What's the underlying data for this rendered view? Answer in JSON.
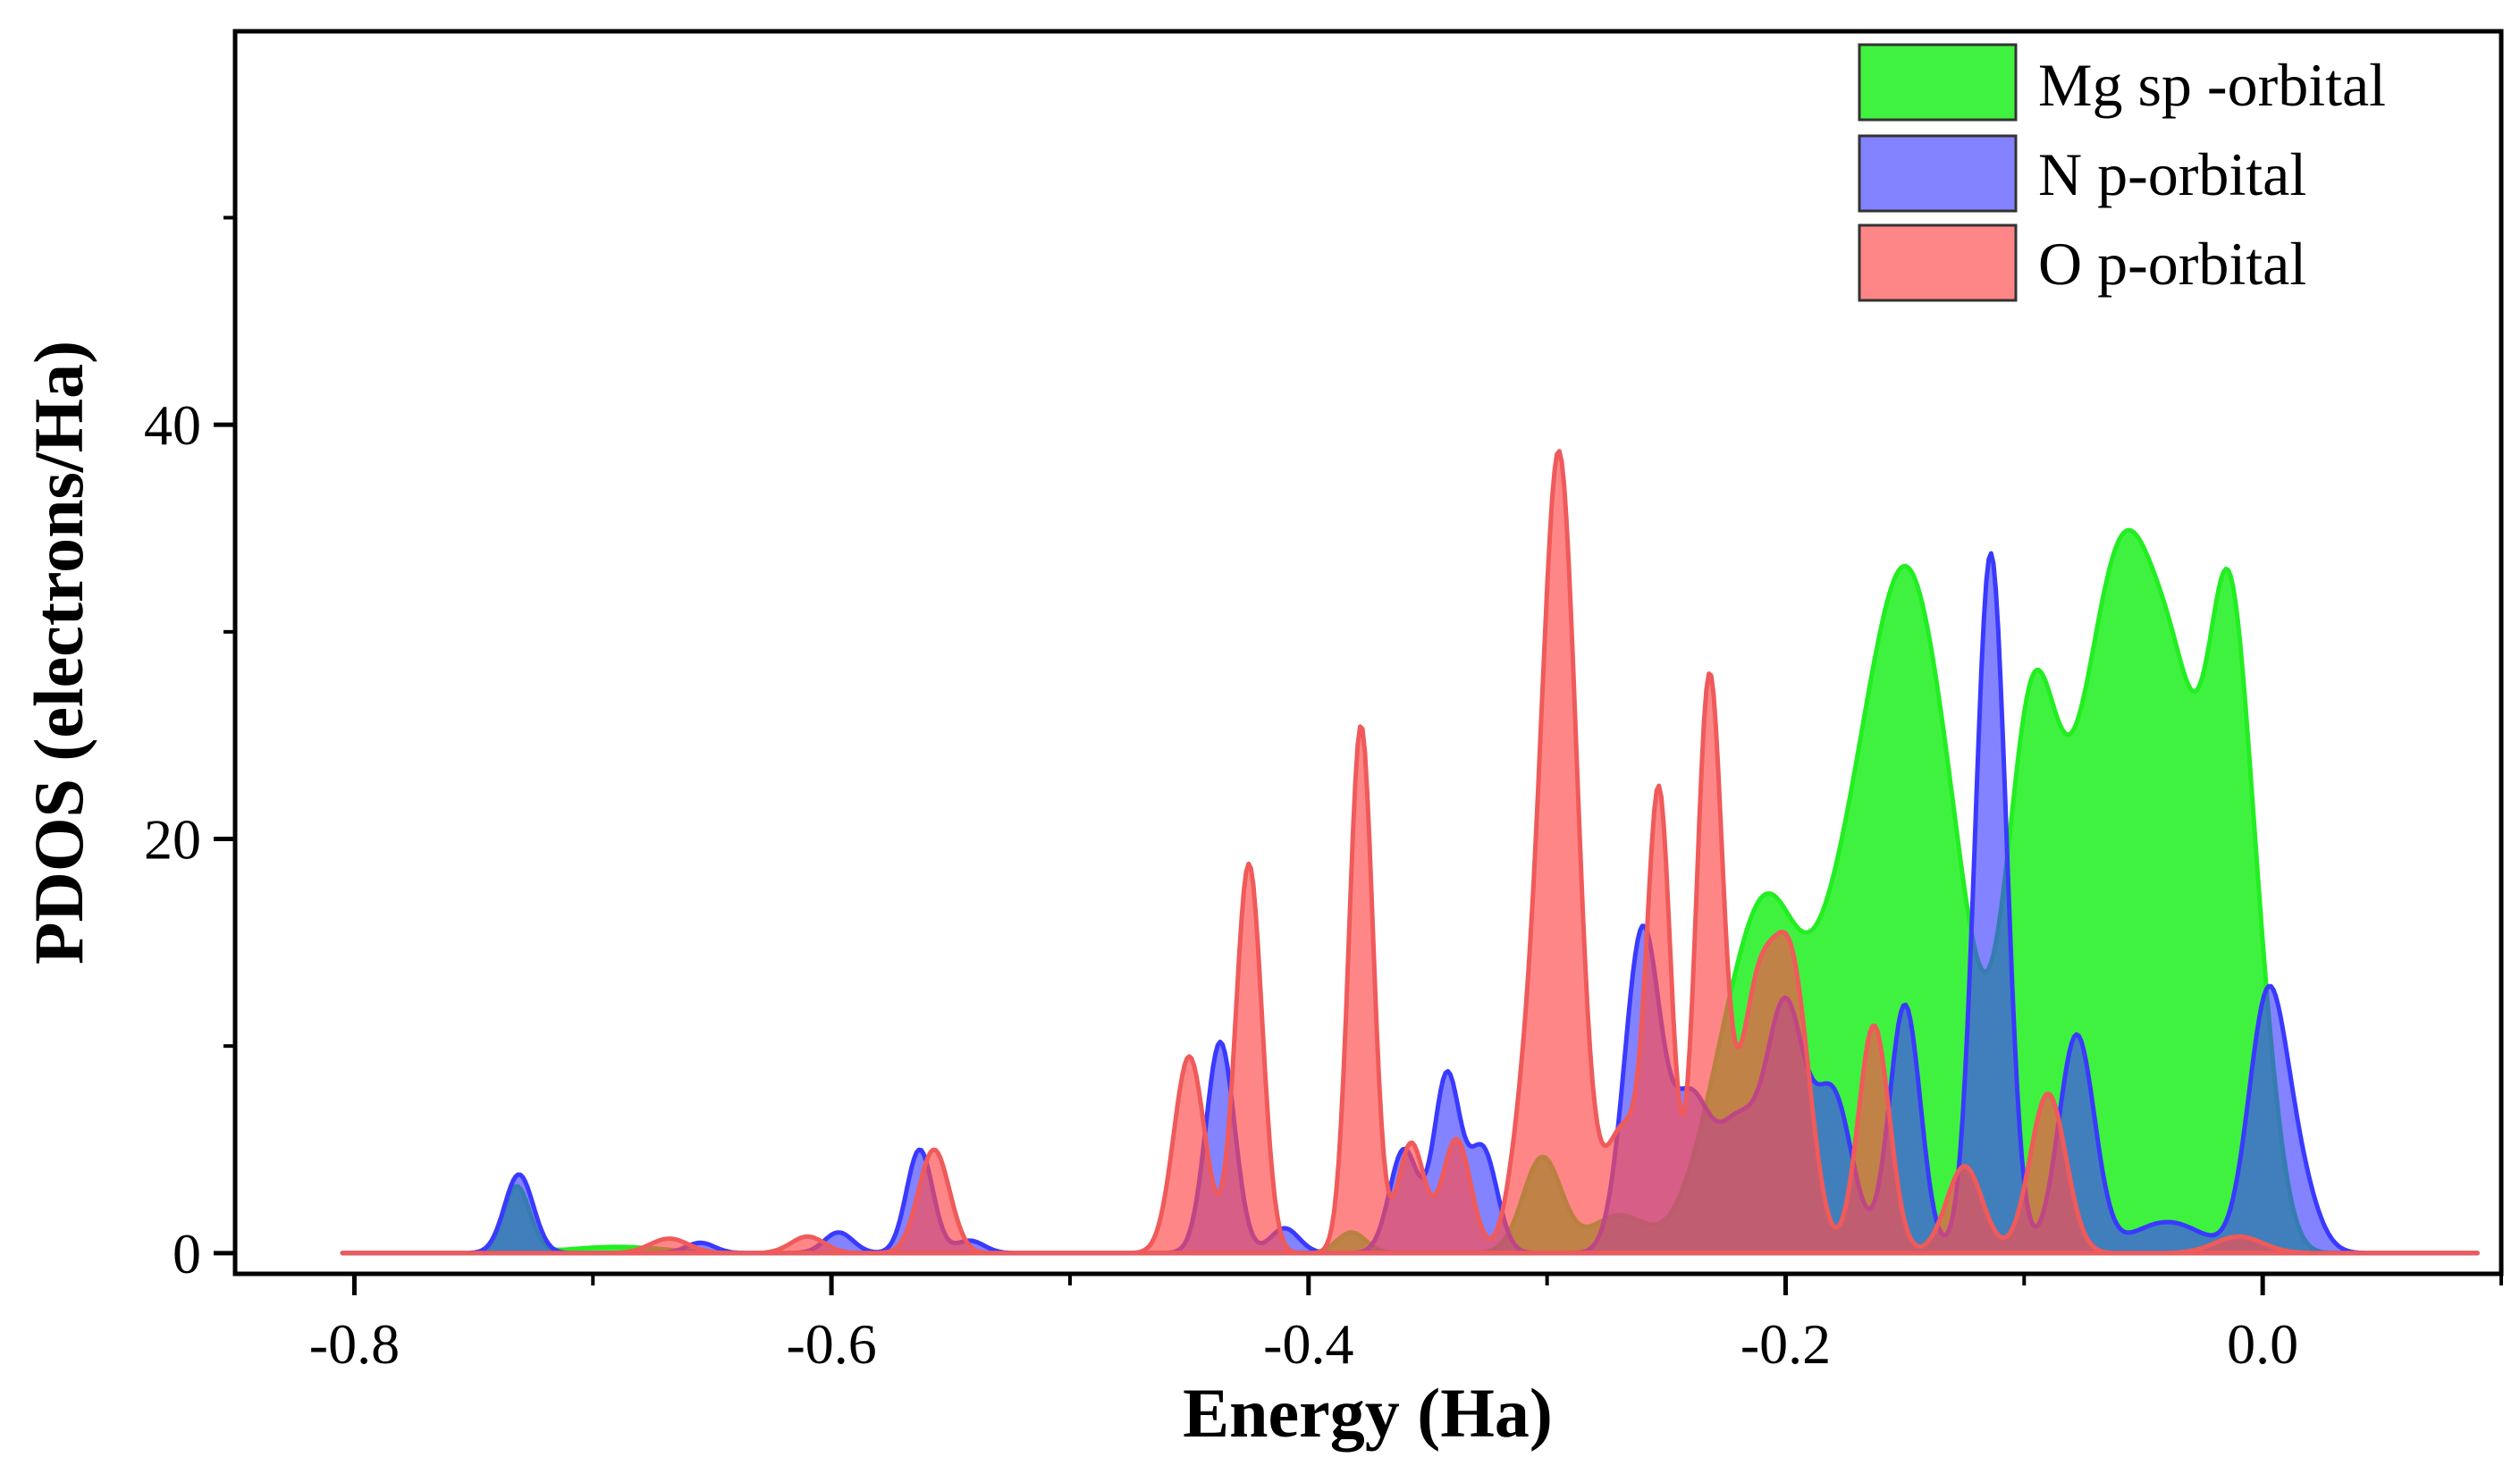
{
  "chart_data": {
    "type": "area",
    "title": "",
    "xlabel": "Energy (Ha)",
    "ylabel": "PDOS (electrons/Ha)",
    "xlim": [
      -0.85,
      0.1
    ],
    "ylim": [
      -1,
      59
    ],
    "x_major_ticks": [
      -0.8,
      -0.6,
      -0.4,
      -0.2,
      0.0
    ],
    "x_tick_labels": [
      "-0.8",
      "-0.6",
      "-0.4",
      "-0.2",
      "0.0"
    ],
    "y_major_ticks": [
      0,
      20,
      40
    ],
    "y_tick_labels": [
      "0",
      "20",
      "40"
    ],
    "legend_position": "top-right",
    "x_start": -0.805,
    "x_end": 0.09,
    "series": [
      {
        "name": "Mg sp -orbital",
        "fill": "#00ee00",
        "stroke": "#22ee22",
        "opacity": 0.75,
        "peaks": [
          {
            "center": -0.732,
            "height": 3.2,
            "width": 0.0055
          },
          {
            "center": -0.69,
            "height": 0.3,
            "width": 0.02
          },
          {
            "center": -0.382,
            "height": 1.0,
            "width": 0.006
          },
          {
            "center": -0.302,
            "height": 4.6,
            "width": 0.008
          },
          {
            "center": -0.27,
            "height": 1.8,
            "width": 0.012
          },
          {
            "center": -0.222,
            "height": 9.0,
            "width": 0.014
          },
          {
            "center": -0.205,
            "height": 11.0,
            "width": 0.012
          },
          {
            "center": -0.185,
            "height": 7.0,
            "width": 0.012
          },
          {
            "center": -0.168,
            "height": 13.0,
            "width": 0.013
          },
          {
            "center": -0.148,
            "height": 26.5,
            "width": 0.014
          },
          {
            "center": -0.128,
            "height": 10.0,
            "width": 0.012
          },
          {
            "center": -0.097,
            "height": 24.5,
            "width": 0.011
          },
          {
            "center": -0.072,
            "height": 17.0,
            "width": 0.013
          },
          {
            "center": -0.052,
            "height": 27.0,
            "width": 0.014
          },
          {
            "center": -0.033,
            "height": 14.0,
            "width": 0.01
          },
          {
            "center": -0.014,
            "height": 28.5,
            "width": 0.009
          },
          {
            "center": 0.0,
            "height": 6.5,
            "width": 0.008
          }
        ]
      },
      {
        "name": "N p-orbital",
        "fill": "#4040ff",
        "stroke": "#3a3aff",
        "opacity": 0.65,
        "peaks": [
          {
            "center": -0.731,
            "height": 3.8,
            "width": 0.006
          },
          {
            "center": -0.655,
            "height": 0.5,
            "width": 0.006
          },
          {
            "center": -0.597,
            "height": 1.0,
            "width": 0.006
          },
          {
            "center": -0.563,
            "height": 5.0,
            "width": 0.0055
          },
          {
            "center": -0.542,
            "height": 0.6,
            "width": 0.006
          },
          {
            "center": -0.437,
            "height": 10.2,
            "width": 0.006
          },
          {
            "center": -0.41,
            "height": 1.2,
            "width": 0.006
          },
          {
            "center": -0.36,
            "height": 5.0,
            "width": 0.006
          },
          {
            "center": -0.342,
            "height": 8.5,
            "width": 0.0055
          },
          {
            "center": -0.327,
            "height": 5.0,
            "width": 0.006
          },
          {
            "center": -0.26,
            "height": 15.5,
            "width": 0.0075
          },
          {
            "center": -0.24,
            "height": 7.0,
            "width": 0.008
          },
          {
            "center": -0.22,
            "height": 6.0,
            "width": 0.009
          },
          {
            "center": -0.2,
            "height": 11.5,
            "width": 0.008
          },
          {
            "center": -0.18,
            "height": 7.5,
            "width": 0.008
          },
          {
            "center": -0.15,
            "height": 12.0,
            "width": 0.0065
          },
          {
            "center": -0.114,
            "height": 33.8,
            "width": 0.0065
          },
          {
            "center": -0.078,
            "height": 10.5,
            "width": 0.0075
          },
          {
            "center": -0.04,
            "height": 1.5,
            "width": 0.015
          },
          {
            "center": 0.002,
            "height": 12.0,
            "width": 0.008
          },
          {
            "center": 0.015,
            "height": 3.0,
            "width": 0.008
          }
        ]
      },
      {
        "name": "O p-orbital",
        "fill": "#ff4c4c",
        "stroke": "#f05a5a",
        "opacity": 0.68,
        "peaks": [
          {
            "center": -0.668,
            "height": 0.7,
            "width": 0.008
          },
          {
            "center": -0.61,
            "height": 0.8,
            "width": 0.007
          },
          {
            "center": -0.557,
            "height": 5.0,
            "width": 0.0065
          },
          {
            "center": -0.45,
            "height": 9.5,
            "width": 0.0065
          },
          {
            "center": -0.425,
            "height": 18.8,
            "width": 0.0055
          },
          {
            "center": -0.378,
            "height": 25.5,
            "width": 0.005
          },
          {
            "center": -0.357,
            "height": 5.3,
            "width": 0.0055
          },
          {
            "center": -0.338,
            "height": 5.5,
            "width": 0.006
          },
          {
            "center": -0.31,
            "height": 5.0,
            "width": 0.006
          },
          {
            "center": -0.295,
            "height": 38.5,
            "width": 0.0075
          },
          {
            "center": -0.268,
            "height": 6.0,
            "width": 0.008
          },
          {
            "center": -0.253,
            "height": 21.5,
            "width": 0.005
          },
          {
            "center": -0.232,
            "height": 27.5,
            "width": 0.0055
          },
          {
            "center": -0.212,
            "height": 12.0,
            "width": 0.008
          },
          {
            "center": -0.197,
            "height": 12.5,
            "width": 0.0075
          },
          {
            "center": -0.163,
            "height": 11.0,
            "width": 0.0065
          },
          {
            "center": -0.125,
            "height": 4.2,
            "width": 0.0075
          },
          {
            "center": -0.09,
            "height": 7.7,
            "width": 0.0075
          },
          {
            "center": -0.01,
            "height": 0.8,
            "width": 0.01
          }
        ]
      }
    ]
  }
}
